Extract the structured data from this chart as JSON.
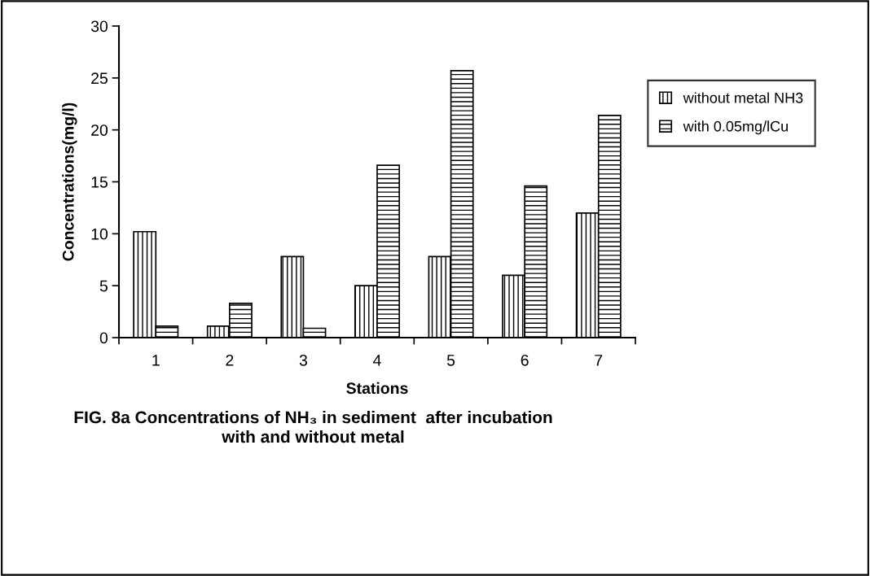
{
  "chart_data": {
    "type": "bar",
    "title": "FIG. 8a Concentrations of NH₃ in sediment  after incubation\nwith and without metal",
    "xlabel": "Stations",
    "ylabel": "Concentrations(mg/l)",
    "categories": [
      "1",
      "2",
      "3",
      "4",
      "5",
      "6",
      "7"
    ],
    "series": [
      {
        "name": "without metal NH3",
        "color": "#000000",
        "values": [
          10.2,
          1.1,
          7.8,
          5.0,
          7.8,
          6.0,
          12.0
        ]
      },
      {
        "name": "with 0.05mg/lCu",
        "color": "#000000",
        "values": [
          1.1,
          3.3,
          0.9,
          16.6,
          25.7,
          14.6,
          21.4
        ]
      }
    ],
    "ylim": [
      0,
      30
    ],
    "yticks": [
      0,
      5,
      10,
      15,
      20,
      25,
      30
    ],
    "grid": false,
    "legend": "right"
  }
}
